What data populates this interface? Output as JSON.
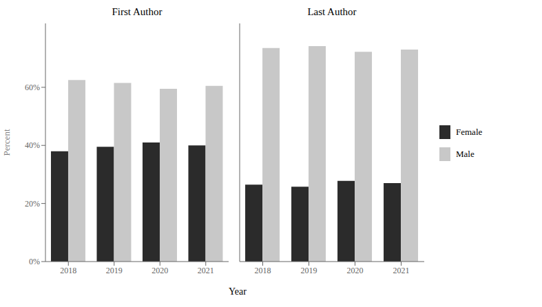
{
  "chart_data": [
    {
      "type": "bar",
      "title": "First Author",
      "xlabel": "Year",
      "ylabel": "Percent",
      "categories": [
        "2018",
        "2019",
        "2020",
        "2021"
      ],
      "series": [
        {
          "name": "Female",
          "color": "#2b2b2b",
          "values": [
            0.38,
            0.395,
            0.41,
            0.4
          ]
        },
        {
          "name": "Male",
          "color": "#c8c8c8",
          "values": [
            0.625,
            0.615,
            0.595,
            0.605
          ]
        }
      ],
      "ylim": [
        0,
        0.82
      ],
      "yticks": [
        {
          "value": 0.0,
          "label": "0%"
        },
        {
          "value": 0.2,
          "label": "20%"
        },
        {
          "value": 0.4,
          "label": "40%"
        },
        {
          "value": 0.6,
          "label": "60%"
        }
      ],
      "grid": false,
      "legend": "right"
    },
    {
      "type": "bar",
      "title": "Last Author",
      "categories": [
        "2018",
        "2019",
        "2020",
        "2021"
      ],
      "series": [
        {
          "name": "Female",
          "color": "#2b2b2b",
          "values": [
            0.265,
            0.258,
            0.278,
            0.27
          ]
        },
        {
          "name": "Male",
          "color": "#c8c8c8",
          "values": [
            0.735,
            0.742,
            0.722,
            0.73
          ]
        }
      ],
      "ylim": [
        0,
        0.82
      ],
      "yticks": [
        0.0,
        0.2,
        0.4,
        0.6
      ],
      "grid": false,
      "tick_labels": "x"
    }
  ]
}
